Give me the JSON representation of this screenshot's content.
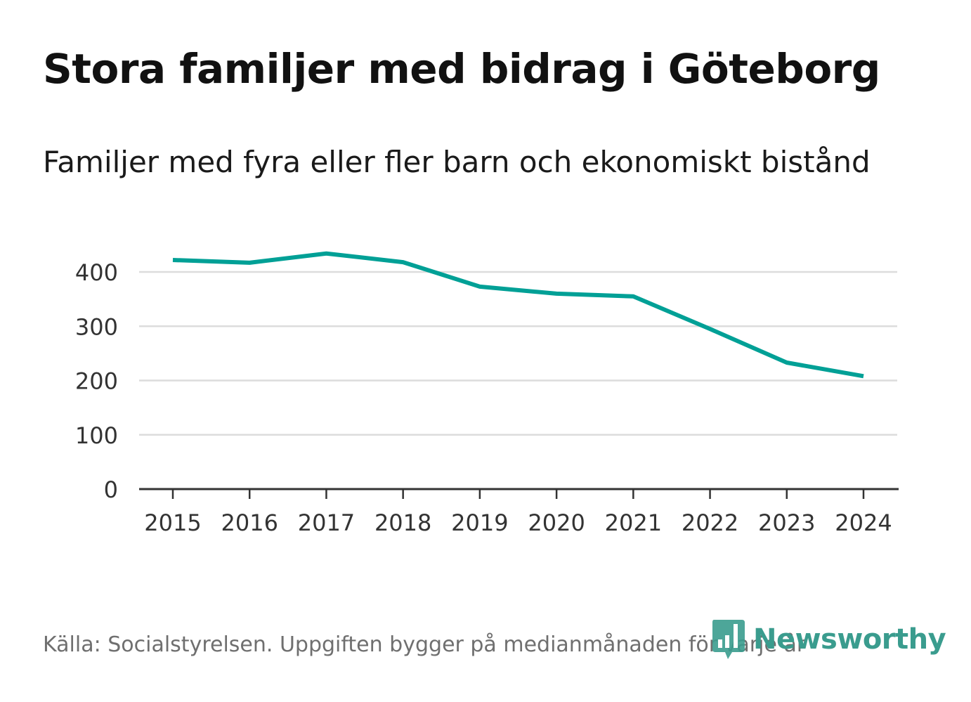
{
  "title": "Stora familjer med bidrag i Göteborg",
  "subtitle": "Familjer med fyra eller fler barn och ekonomiskt bistånd",
  "source": "Källa: Socialstyrelsen. Uppgiften bygger på medianmånaden för varje år",
  "logo": {
    "name": "Newsworthy",
    "color": "#3a9c8e"
  },
  "chart_data": {
    "type": "line",
    "title": "Stora familjer med bidrag i Göteborg",
    "subtitle": "Familjer med fyra eller fler barn och ekonomiskt bistånd",
    "x": [
      "2015",
      "2016",
      "2017",
      "2018",
      "2019",
      "2020",
      "2021",
      "2022",
      "2023",
      "2024"
    ],
    "series": [
      {
        "name": "Familjer",
        "color": "#00a096",
        "values": [
          422,
          417,
          434,
          418,
          373,
          360,
          355,
          295,
          233,
          208
        ]
      }
    ],
    "yticks": [
      0,
      100,
      200,
      300,
      400
    ],
    "ylim": [
      0,
      450
    ],
    "grid": true,
    "xlabel": "",
    "ylabel": ""
  }
}
